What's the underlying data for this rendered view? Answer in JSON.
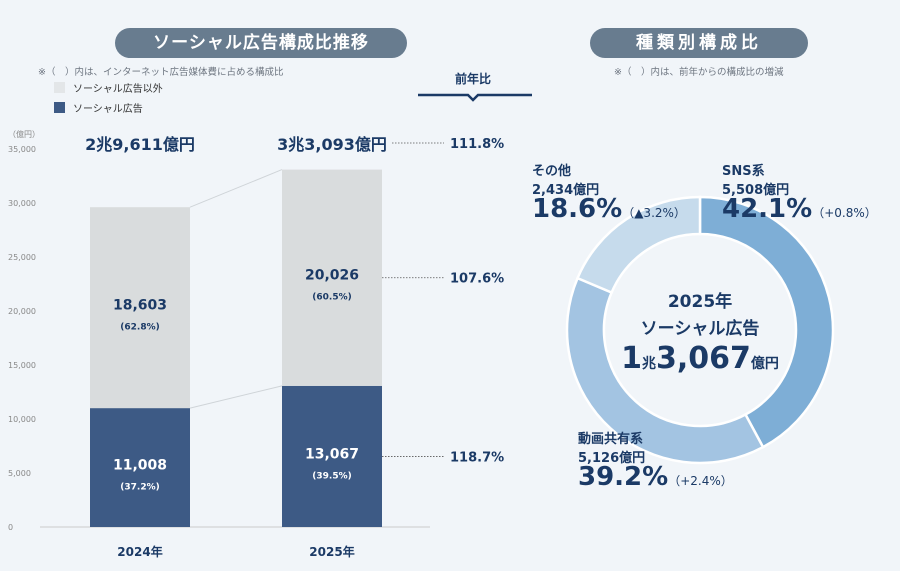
{
  "left": {
    "title": "ソーシャル広告構成比推移",
    "note": "※（　）内は、インターネット広告媒体費に占める構成比",
    "legend": [
      {
        "label": "ソーシャル広告以外",
        "color": "#e3e6e8"
      },
      {
        "label": "ソーシャル広告",
        "color": "#3d5a85"
      }
    ],
    "yoy_header": "前年比"
  },
  "right": {
    "title": "種類別構成比",
    "note": "※（　）内は、前年からの構成比の増減",
    "center": {
      "year": "2025年",
      "label": "ソーシャル広告",
      "big_a": "1",
      "unit_a": "兆",
      "big_b": "3,067",
      "unit_b": "億円"
    }
  },
  "chart_data": [
    {
      "type": "bar",
      "stacked": true,
      "ylabel": "（億円）",
      "ylim": [
        0,
        35000
      ],
      "yticks": [
        "0",
        "5,000",
        "10,000",
        "15,000",
        "20,000",
        "25,000",
        "30,000",
        "35,000"
      ],
      "categories": [
        "2024年",
        "2025年"
      ],
      "totals": [
        "2兆9,611億円",
        "3兆3,093億円"
      ],
      "series": [
        {
          "name": "ソーシャル広告",
          "color": "#3d5a85",
          "values": [
            11008,
            13067
          ],
          "labels": [
            "11,008",
            "13,067"
          ],
          "shares": [
            "(37.2%)",
            "(39.5%)"
          ]
        },
        {
          "name": "ソーシャル広告以外",
          "color": "#d9dcdd",
          "values": [
            18603,
            20026
          ],
          "labels": [
            "18,603",
            "20,026"
          ],
          "shares": [
            "(62.8%)",
            "(60.5%)"
          ]
        }
      ],
      "yoy": {
        "total": "111.8%",
        "other": "107.6%",
        "social": "118.7%"
      }
    },
    {
      "type": "pie",
      "donut": true,
      "slices": [
        {
          "name": "SNS系",
          "amount": "5,508億円",
          "value": 42.1,
          "pct": "42.1%",
          "change": "（+0.8%）",
          "color": "#7eaed6"
        },
        {
          "name": "動画共有系",
          "amount": "5,126億円",
          "value": 39.2,
          "pct": "39.2%",
          "change": "（+2.4%）",
          "color": "#a3c4e2"
        },
        {
          "name": "その他",
          "amount": "2,434億円",
          "value": 18.6,
          "pct": "18.6%",
          "change": "（▲3.2%）",
          "color": "#c6dbec"
        }
      ]
    }
  ]
}
